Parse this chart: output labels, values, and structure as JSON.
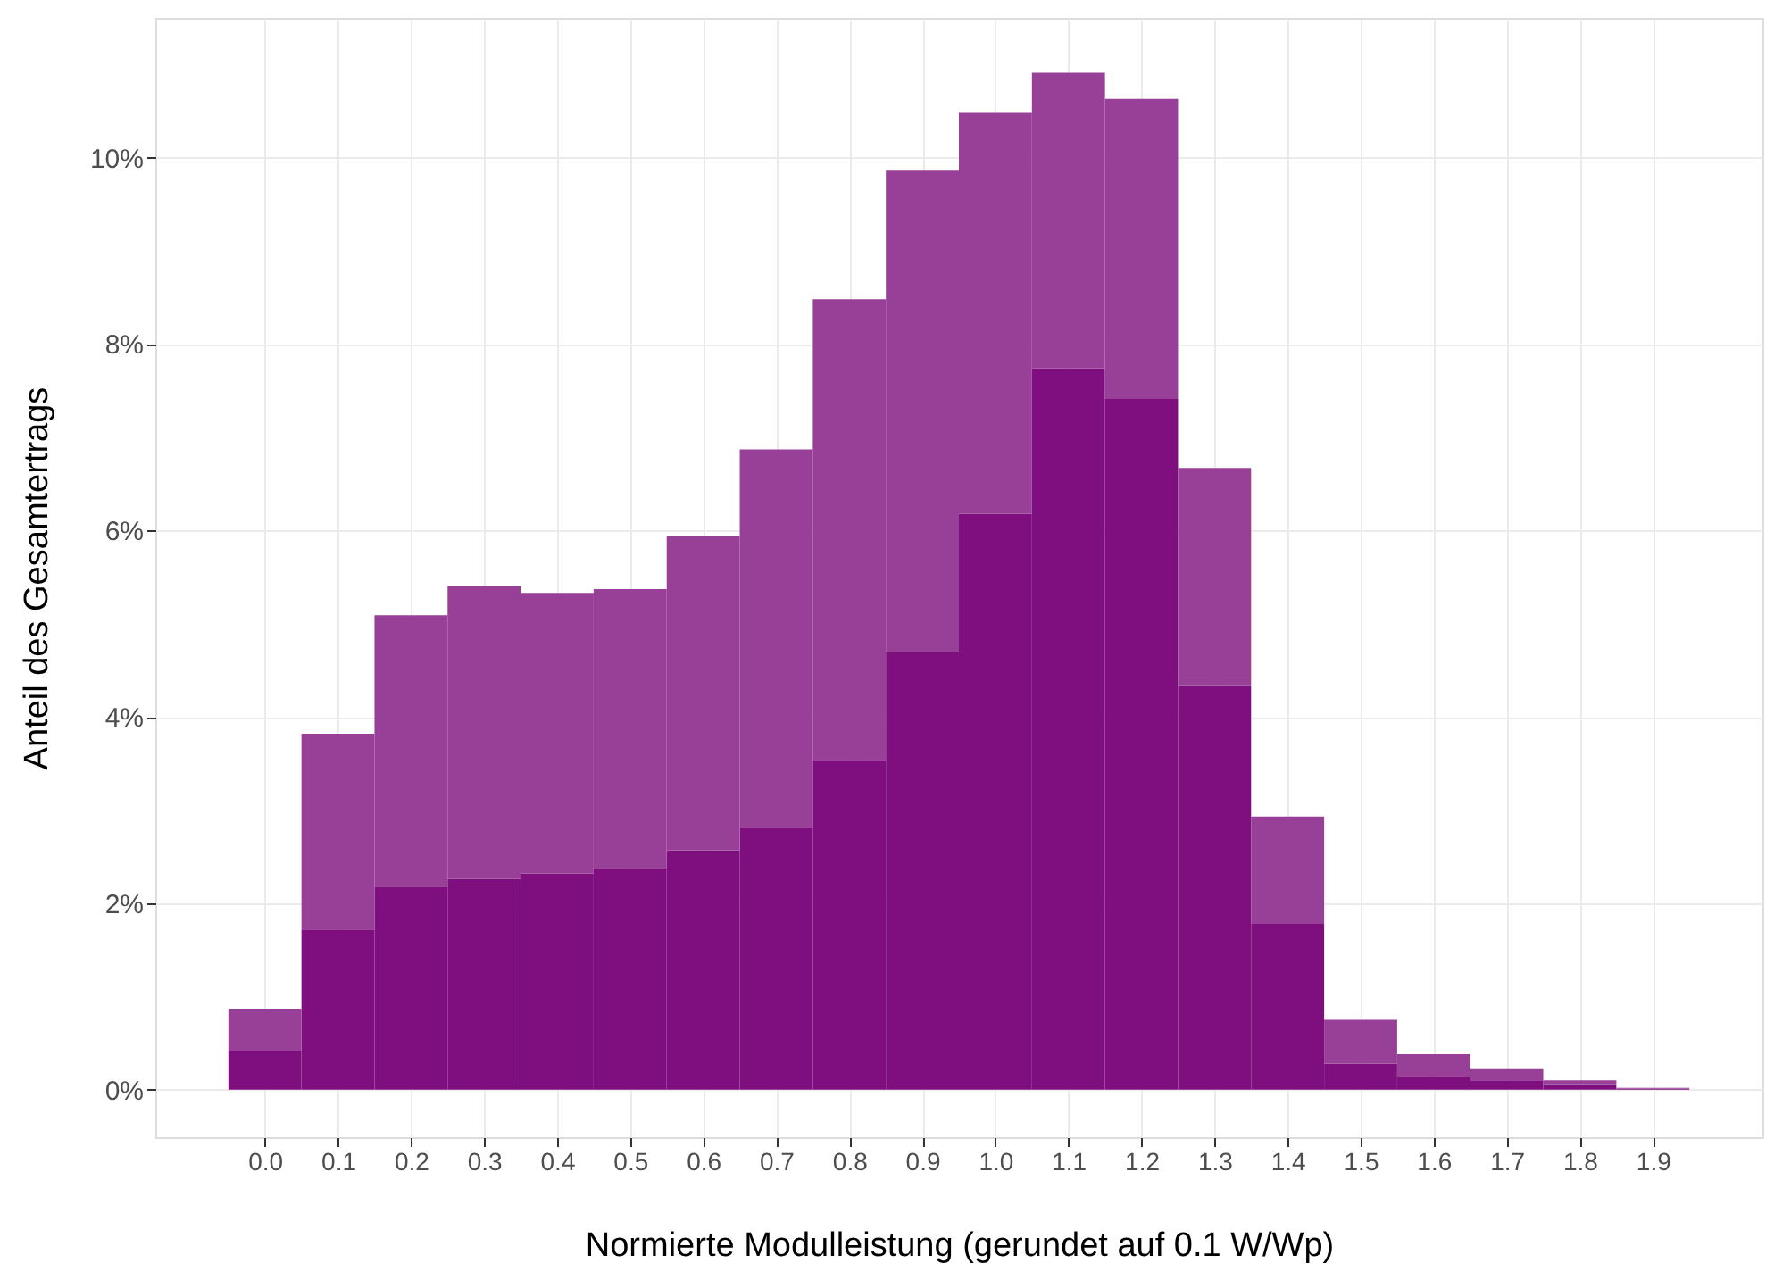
{
  "chart_data": {
    "type": "bar",
    "xlabel": "Normierte Modulleistung (gerundet auf 0.1 W/Wp)",
    "ylabel": "Anteil des Gesamtertrags",
    "x": [
      0.0,
      0.1,
      0.2,
      0.3,
      0.4,
      0.5,
      0.6,
      0.7,
      0.8,
      0.9,
      1.0,
      1.1,
      1.2,
      1.3,
      1.4,
      1.5,
      1.6,
      1.7,
      1.8,
      1.9
    ],
    "series": [
      {
        "color": "#7f0f7e",
        "values": [
          0.42,
          1.72,
          2.18,
          2.26,
          2.32,
          2.38,
          2.57,
          2.81,
          3.54,
          4.69,
          6.18,
          7.74,
          7.41,
          4.34,
          1.78,
          0.28,
          0.14,
          0.1,
          0.06,
          0.01
        ]
      },
      {
        "color": "#983f97",
        "values": [
          0.45,
          2.1,
          2.91,
          3.15,
          3.01,
          2.99,
          3.37,
          4.06,
          4.94,
          5.17,
          4.3,
          3.17,
          3.22,
          2.33,
          1.15,
          0.47,
          0.24,
          0.12,
          0.04,
          0.01
        ]
      }
    ],
    "stacked": true,
    "xlim": [
      -0.15,
      2.05
    ],
    "xticks": [
      {
        "value": 0,
        "label": "0.0"
      },
      {
        "value": 0.1,
        "label": "0.1"
      },
      {
        "value": 0.2,
        "label": "0.2"
      },
      {
        "value": 0.3,
        "label": "0.3"
      },
      {
        "value": 0.4,
        "label": "0.4"
      },
      {
        "value": 0.5,
        "label": "0.5"
      },
      {
        "value": 0.6,
        "label": "0.6"
      },
      {
        "value": 0.7,
        "label": "0.7"
      },
      {
        "value": 0.8,
        "label": "0.8"
      },
      {
        "value": 0.9,
        "label": "0.9"
      },
      {
        "value": 1.0,
        "label": "1.0"
      },
      {
        "value": 1.1,
        "label": "1.1"
      },
      {
        "value": 1.2,
        "label": "1.2"
      },
      {
        "value": 1.3,
        "label": "1.3"
      },
      {
        "value": 1.4,
        "label": "1.4"
      },
      {
        "value": 1.5,
        "label": "1.5"
      },
      {
        "value": 1.6,
        "label": "1.6"
      },
      {
        "value": 1.7,
        "label": "1.7"
      },
      {
        "value": 1.8,
        "label": "1.8"
      },
      {
        "value": 1.9,
        "label": "1.9"
      }
    ],
    "ylim": [
      -0.51,
      11.5
    ],
    "yticks": [
      {
        "value": 0,
        "label": "0%"
      },
      {
        "value": 2,
        "label": "2%"
      },
      {
        "value": 4,
        "label": "4%"
      },
      {
        "value": 6,
        "label": "6%"
      },
      {
        "value": 8,
        "label": "8%"
      },
      {
        "value": 10,
        "label": "10%"
      }
    ],
    "grid": true
  }
}
